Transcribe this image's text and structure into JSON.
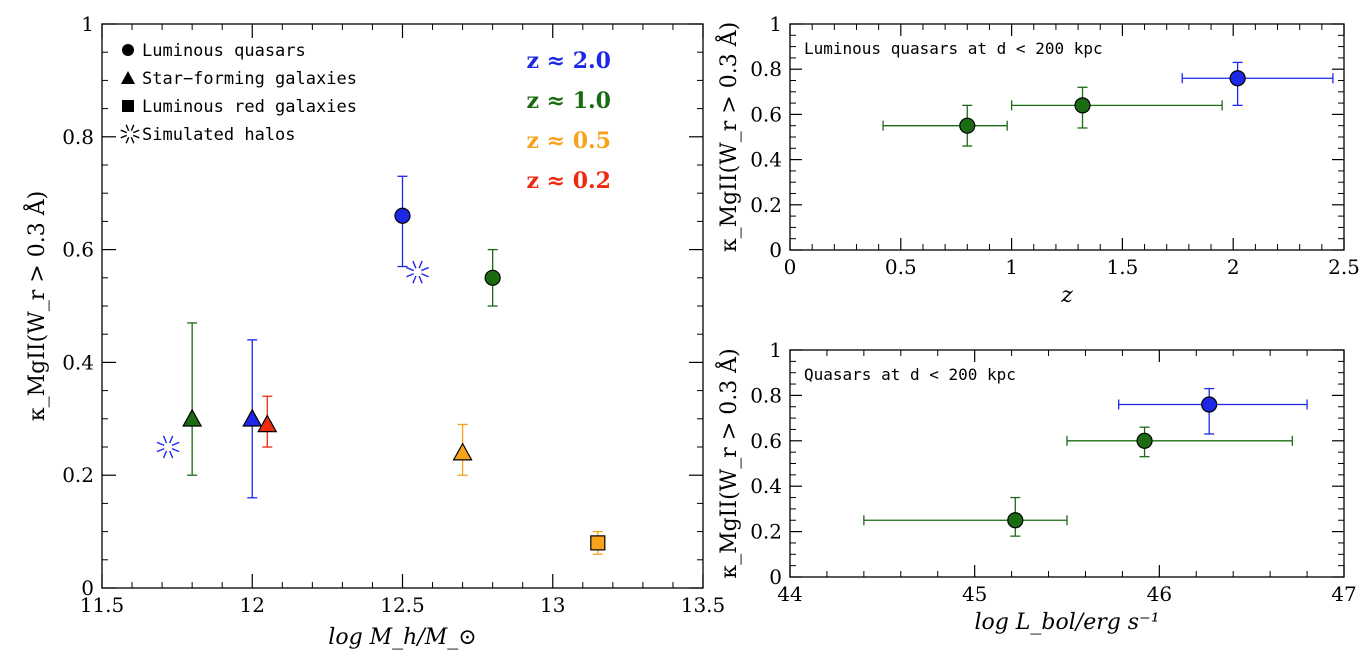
{
  "chart_data": [
    {
      "type": "scatter",
      "xlabel": "log M_h/M_⊙",
      "ylabel": "κ_MgII(W_r > 0.3 Å)",
      "xlim": [
        11.5,
        13.5
      ],
      "ylim": [
        0,
        1
      ],
      "xticks": [
        "11.5",
        "12",
        "12.5",
        "13",
        "13.5"
      ],
      "yticks": [
        "0",
        "0.2",
        "0.4",
        "0.6",
        "0.8",
        "1"
      ],
      "legend": {
        "placement": "top-left",
        "entries": [
          {
            "label": "Luminous quasars",
            "marker": "circle"
          },
          {
            "label": "Star−forming galaxies",
            "marker": "triangle"
          },
          {
            "label": "Luminous red galaxies",
            "marker": "square"
          },
          {
            "label": "Simulated halos",
            "marker": "star"
          }
        ]
      },
      "redshift_labels": [
        {
          "text": "z ≈ 2.0",
          "color": "#1c28e6"
        },
        {
          "text": "z ≈ 1.0",
          "color": "#1a6b12"
        },
        {
          "text": "z ≈ 0.5",
          "color": "#f7a21b"
        },
        {
          "text": "z ≈ 0.2",
          "color": "#ee2a10"
        }
      ],
      "points": [
        {
          "marker": "circle",
          "x": 12.5,
          "y": 0.66,
          "err_lo": 0.09,
          "err_hi": 0.07,
          "color": "#1c28e6"
        },
        {
          "marker": "circle",
          "x": 12.8,
          "y": 0.55,
          "err_lo": 0.05,
          "err_hi": 0.05,
          "color": "#1a6b12"
        },
        {
          "marker": "triangle",
          "x": 11.8,
          "y": 0.3,
          "err_lo": 0.1,
          "err_hi": 0.17,
          "color": "#1a6b12"
        },
        {
          "marker": "triangle",
          "x": 12.0,
          "y": 0.3,
          "err_lo": 0.14,
          "err_hi": 0.14,
          "color": "#1c28e6"
        },
        {
          "marker": "triangle",
          "x": 12.05,
          "y": 0.29,
          "err_lo": 0.04,
          "err_hi": 0.05,
          "color": "#ee2a10"
        },
        {
          "marker": "triangle",
          "x": 12.7,
          "y": 0.24,
          "err_lo": 0.04,
          "err_hi": 0.05,
          "color": "#f7a21b"
        },
        {
          "marker": "square",
          "x": 13.15,
          "y": 0.08,
          "err_lo": 0.02,
          "err_hi": 0.02,
          "color": "#f7a21b"
        },
        {
          "marker": "star",
          "x": 12.55,
          "y": 0.56,
          "color": "#1c28e6"
        },
        {
          "marker": "star",
          "x": 11.72,
          "y": 0.25,
          "color": "#1c28e6"
        }
      ]
    },
    {
      "type": "scatter",
      "annotation": "Luminous quasars at d < 200 kpc",
      "xlabel": "z",
      "ylabel": "κ_MgII(W_r > 0.3 Å)",
      "xlim": [
        0,
        2.5
      ],
      "ylim": [
        0,
        1
      ],
      "xticks": [
        "0",
        "0.5",
        "1",
        "1.5",
        "2",
        "2.5"
      ],
      "yticks": [
        "0",
        "0.2",
        "0.4",
        "0.6",
        "0.8",
        "1"
      ],
      "points": [
        {
          "x": 0.8,
          "y": 0.55,
          "x_lo": 0.42,
          "x_hi": 0.98,
          "err_lo": 0.09,
          "err_hi": 0.09,
          "color": "#1a6b12"
        },
        {
          "x": 1.32,
          "y": 0.64,
          "x_lo": 1.0,
          "x_hi": 1.95,
          "err_lo": 0.1,
          "err_hi": 0.08,
          "color": "#1a6b12"
        },
        {
          "x": 2.02,
          "y": 0.76,
          "x_lo": 1.77,
          "x_hi": 2.45,
          "err_lo": 0.12,
          "err_hi": 0.07,
          "color": "#1c28e6"
        }
      ]
    },
    {
      "type": "scatter",
      "annotation": "Quasars at d < 200 kpc",
      "xlabel": "log L_bol/erg s⁻¹",
      "ylabel": "κ_MgII(W_r > 0.3 Å)",
      "xlim": [
        44,
        47
      ],
      "ylim": [
        0,
        1
      ],
      "xticks": [
        "44",
        "45",
        "46",
        "47"
      ],
      "yticks": [
        "0",
        "0.2",
        "0.4",
        "0.6",
        "0.8",
        "1"
      ],
      "points": [
        {
          "x": 45.22,
          "y": 0.25,
          "x_lo": 44.4,
          "x_hi": 45.5,
          "err_lo": 0.07,
          "err_hi": 0.1,
          "color": "#1a6b12"
        },
        {
          "x": 45.92,
          "y": 0.6,
          "x_lo": 45.5,
          "x_hi": 46.72,
          "err_lo": 0.07,
          "err_hi": 0.06,
          "color": "#1a6b12"
        },
        {
          "x": 46.27,
          "y": 0.76,
          "x_lo": 45.78,
          "x_hi": 46.8,
          "err_lo": 0.13,
          "err_hi": 0.07,
          "color": "#1c28e6"
        }
      ]
    }
  ]
}
